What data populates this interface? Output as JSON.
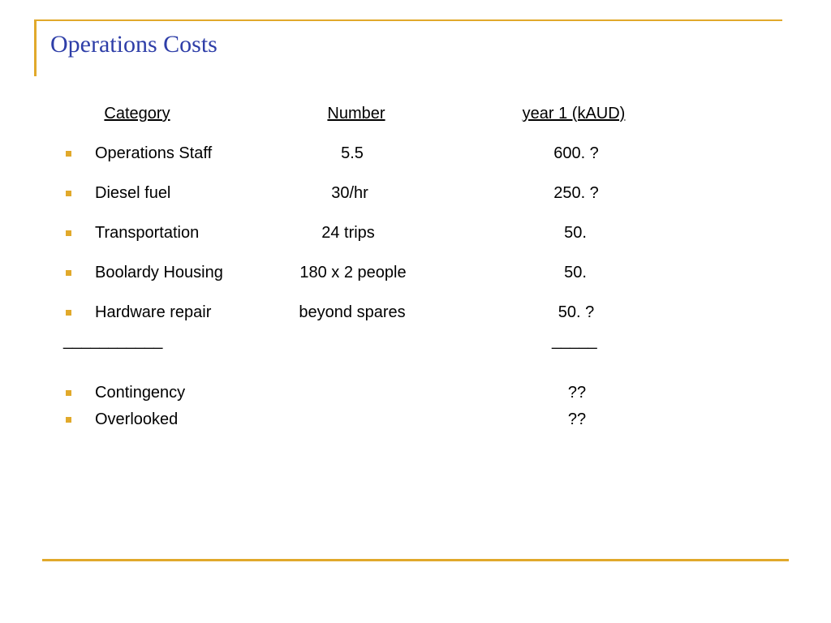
{
  "slide": {
    "title": "Operations Costs"
  },
  "table": {
    "headers": {
      "category": "Category",
      "number": "Number",
      "year1": "year 1 (kAUD)"
    },
    "rows": [
      {
        "category": "Operations Staff",
        "number": "5.5",
        "year1": "600. ?"
      },
      {
        "category": "Diesel fuel",
        "number": "30/hr",
        "year1": "250. ?"
      },
      {
        "category": "Transportation",
        "number": "24 trips",
        "year1": "50."
      },
      {
        "category": "Boolardy Housing",
        "number": "180 x 2 people",
        "year1": "50."
      },
      {
        "category": "Hardware repair",
        "number": "beyond spares",
        "year1": "50. ?"
      }
    ],
    "separator_left": "___________",
    "separator_right": "_____",
    "extras": [
      {
        "category": "Contingency",
        "year1": "??"
      },
      {
        "category": "Overlooked",
        "year1": "??"
      }
    ]
  },
  "colors": {
    "accent": "#e1a92b",
    "title": "#2e3ea8"
  },
  "icons": {
    "bullet": "square-bullet-icon"
  }
}
